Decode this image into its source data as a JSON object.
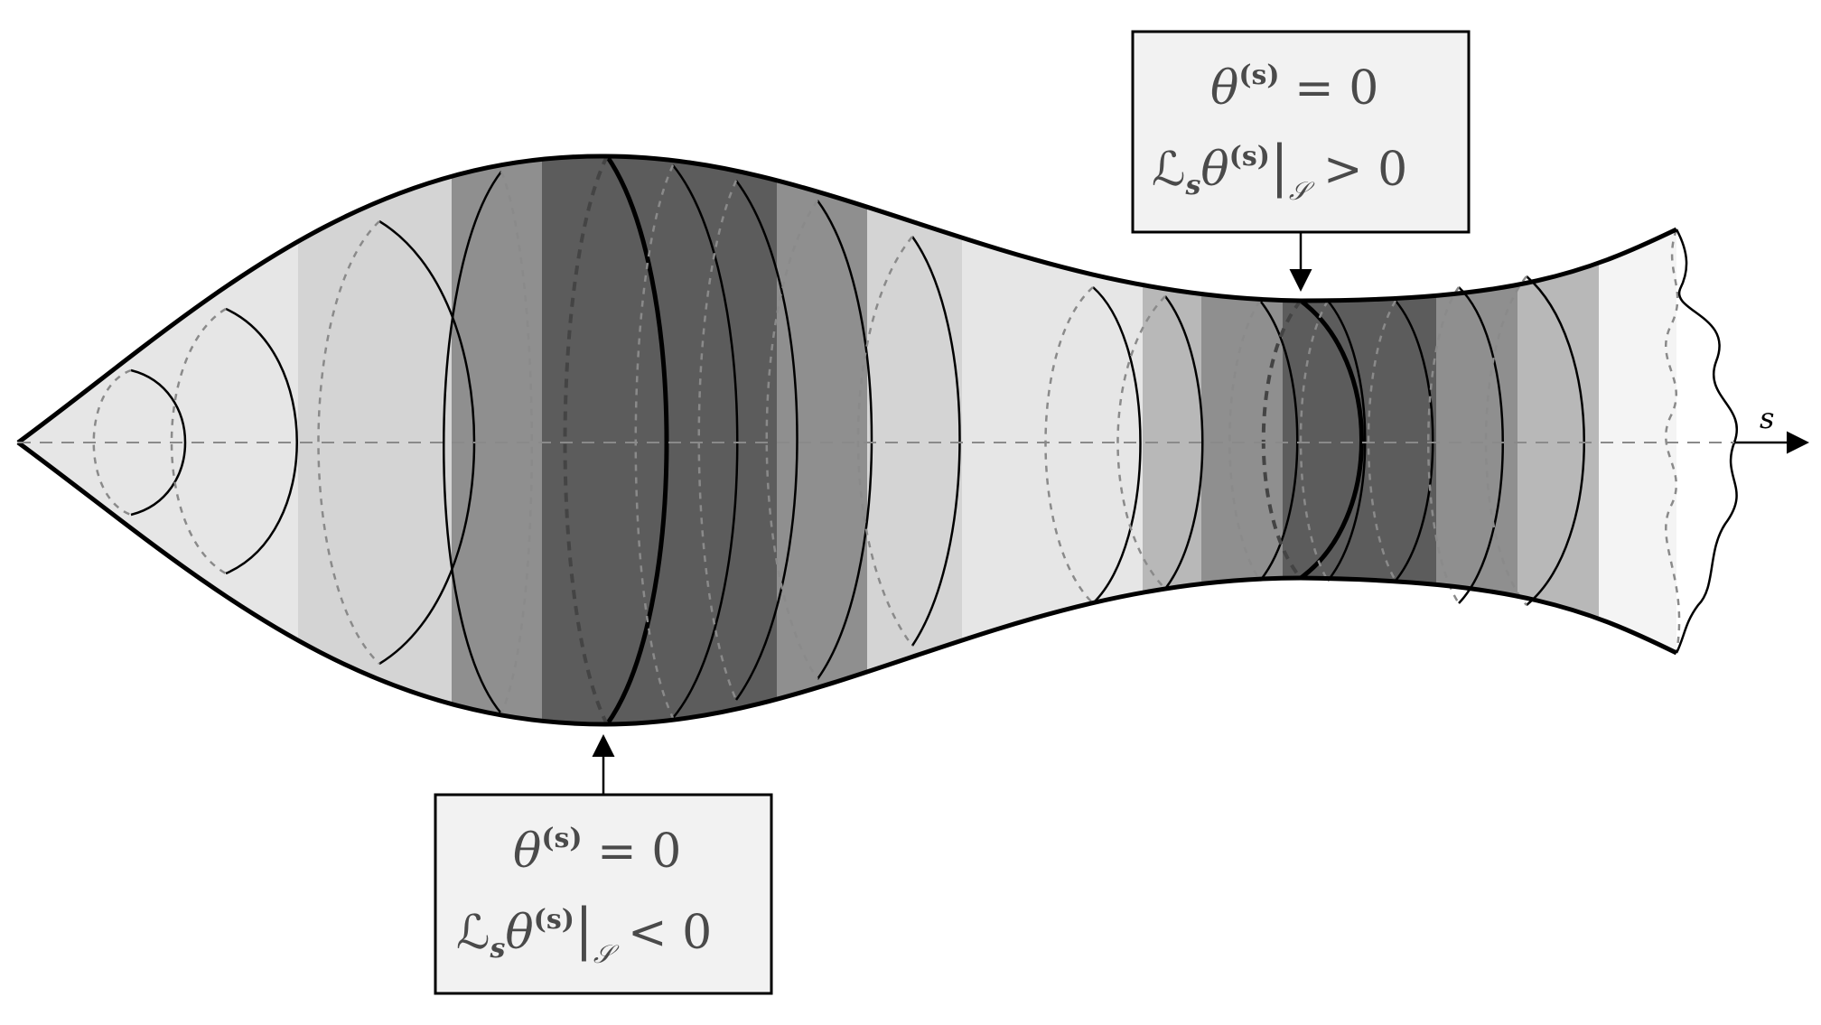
{
  "axis": {
    "label": "s"
  },
  "annotations": [
    {
      "id": "throat",
      "line1": {
        "theta": "θ",
        "sup": "(s)",
        "rest": " = 0"
      },
      "line2": {
        "L": "ℒ",
        "Lsub": "s",
        "theta": "θ",
        "sup": "(s)",
        "bar": "|",
        "scr": "𝒮",
        "rest": " > 0"
      }
    },
    {
      "id": "bulge",
      "line1": {
        "theta": "θ",
        "sup": "(s)",
        "rest": " = 0"
      },
      "line2": {
        "L": "ℒ",
        "Lsub": "s",
        "theta": "θ",
        "sup": "(s)",
        "bar": "|",
        "scr": "𝒮",
        "rest": " < 0"
      }
    }
  ],
  "colors": {
    "outline": "#000000",
    "shade_lightest": "#f4f4f4",
    "shade_light": "#e6e6e6",
    "shade_mid_light": "#d4d4d4",
    "shade_mid": "#b8b8b8",
    "shade_mid_dark": "#8f8f8f",
    "shade_dark": "#5c5c5c",
    "box_fill": "#f2f2f2",
    "dashed": "#8a8a8a"
  }
}
